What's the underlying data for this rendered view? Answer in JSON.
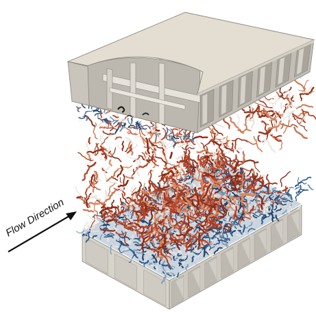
{
  "annotation": {
    "flow_label": "Flow Direction"
  },
  "colors": {
    "wall": "#dcd9d2",
    "wall_dark": "#bdb9b0",
    "wall_shadow": "#a8a49b",
    "cell_inner": "#cfcbc3",
    "vortex_red": "#b8452a",
    "vortex_dark_red": "#8a2a14",
    "vortex_orange": "#d9865e",
    "vortex_light": "#e9e6e1",
    "vortex_blue": "#2f5f8f",
    "vortex_dark_blue": "#1d3f66",
    "arrow": "#111111"
  }
}
